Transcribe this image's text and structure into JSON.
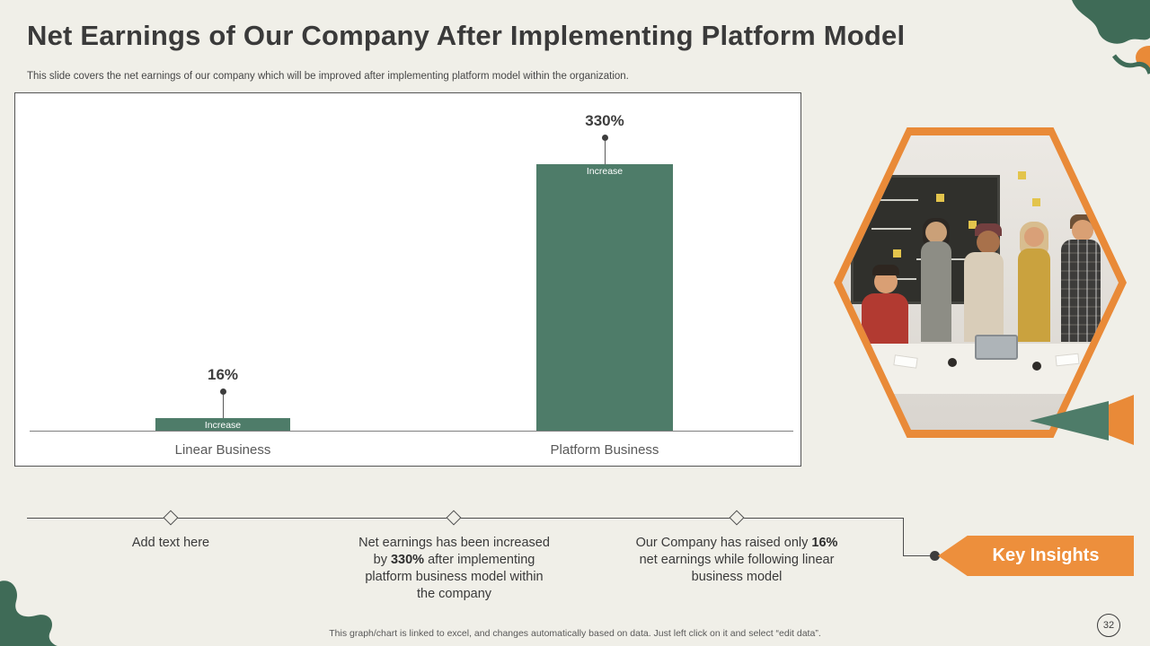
{
  "slide": {
    "title": "Net Earnings of Our Company After Implementing Platform Model",
    "subtitle": "This slide covers the net earnings of our company which will be improved after implementing platform model within the organization.",
    "footer_note": "This graph/chart is linked to excel, and changes automatically based on data. Just left click on it and select “edit data”.",
    "page_number": "32",
    "photo_description": "team collaborating at a table in front of a blackboard"
  },
  "chart_data": {
    "type": "bar",
    "title": "",
    "categories": [
      "Linear Business",
      "Platform Business"
    ],
    "series": [
      {
        "name": "Increase",
        "values": [
          16,
          330
        ]
      }
    ],
    "value_labels": [
      "16%",
      "330%"
    ],
    "bar_segment_label": "Increase",
    "xlabel": "",
    "ylabel": "",
    "ylim": [
      0,
      360
    ],
    "grid": false,
    "legend": "none",
    "bar_color": "#4e7c69"
  },
  "timeline": {
    "items": [
      {
        "pre": "Add text here",
        "bold": "",
        "post": ""
      },
      {
        "pre": "Net earnings has been increased by ",
        "bold": "330%",
        "post": " after implementing platform business model within the company"
      },
      {
        "pre": "Our Company has raised only ",
        "bold": "16%",
        "post": " net earnings while following linear business model"
      }
    ]
  },
  "key_insights_label": "Key Insights",
  "colors": {
    "accent_orange": "#e98a38",
    "dark_green": "#3f6b57",
    "bar_green": "#4e7c69",
    "background": "#f0efe8"
  }
}
